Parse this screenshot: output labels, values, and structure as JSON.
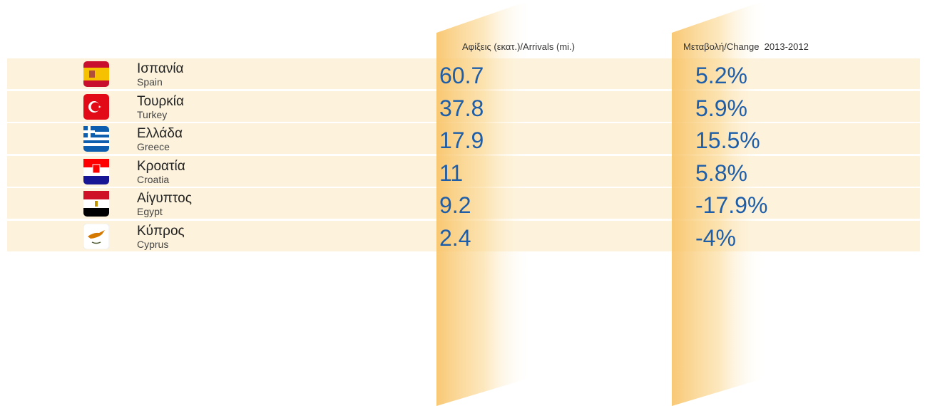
{
  "table": {
    "headers": [
      "Αφίξεις (εκατ.)/Arrivals (mi.)",
      "Μεταβολή/Change  2013-2012"
    ],
    "rows": [
      [
        "Ισπανία",
        "Spain",
        "60.7",
        "5.2%"
      ],
      [
        "Τουρκία",
        "Turkey",
        "37.8",
        "5.9%"
      ],
      [
        "Ελλάδα",
        "Greece",
        "17.9",
        "15.5%"
      ],
      [
        "Κροατία",
        "Croatia",
        "11",
        "5.8%"
      ],
      [
        "Αίγυπτος",
        "Egypt",
        "9.2",
        "-17.9%"
      ],
      [
        "Κύπρος",
        "Cyprus",
        "2.4",
        "-4%"
      ]
    ]
  }
}
